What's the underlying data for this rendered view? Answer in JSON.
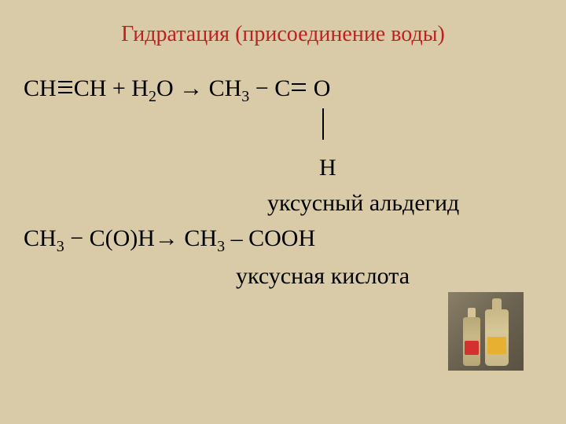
{
  "slide": {
    "title": "Гидратация (присоединение воды)",
    "title_color": "#c02020",
    "title_fontsize": 28,
    "body_color": "#000000",
    "body_fontsize": 30,
    "background_color": "#d9cba8"
  },
  "formula1": {
    "part1": "CH",
    "part2": "CH  + H",
    "sub1": "2",
    "part3": "O → CH",
    "sub2": "3",
    "part4": " − C",
    "part5": " O"
  },
  "vertical_H": "H",
  "label1": "уксусный альдегид",
  "formula2": {
    "part1": "CH",
    "sub1": "3",
    "part2": " − C(O)H→ CH",
    "sub2": "3",
    "part3": " – COOH"
  },
  "label2": "уксусная кислота"
}
